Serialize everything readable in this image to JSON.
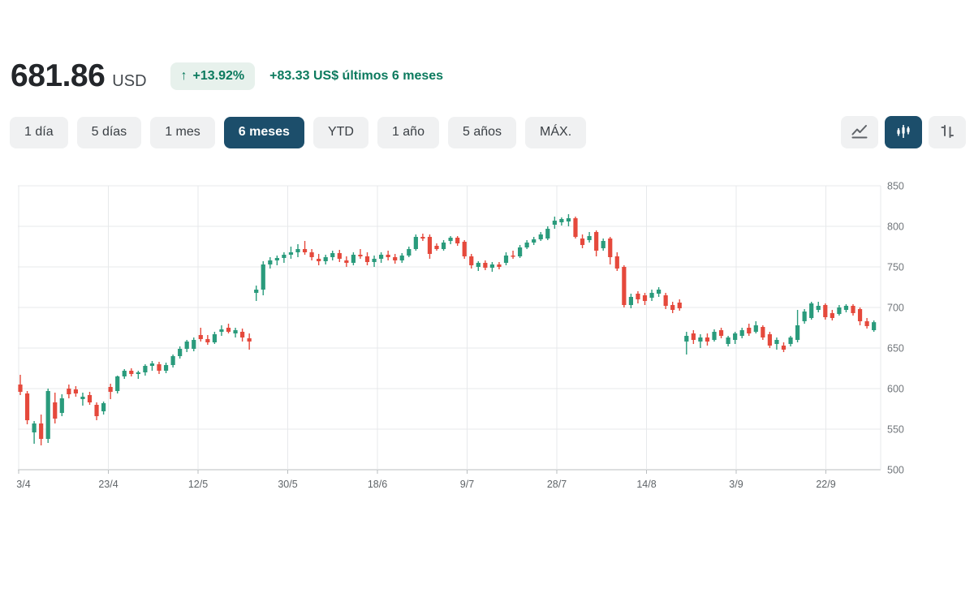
{
  "header": {
    "price": "681.86",
    "currency": "USD",
    "change_arrow": "↑",
    "change_percent": "+13.92%",
    "change_text": "+83.33 US$ últimos 6 meses",
    "accent_color": "#0c7a5e",
    "badge_bg": "#e7f1ec"
  },
  "range_tabs": [
    {
      "label": "1 día",
      "active": false
    },
    {
      "label": "5 días",
      "active": false
    },
    {
      "label": "1 mes",
      "active": false
    },
    {
      "label": "6 meses",
      "active": true
    },
    {
      "label": "YTD",
      "active": false
    },
    {
      "label": "1 año",
      "active": false
    },
    {
      "label": "5 años",
      "active": false
    },
    {
      "label": "MÁX.",
      "active": false
    }
  ],
  "chart_type_buttons": [
    {
      "icon": "line-chart-icon",
      "active": false
    },
    {
      "icon": "candlestick-chart-icon",
      "active": true
    },
    {
      "icon": "ohlc-bars-icon",
      "active": false
    }
  ],
  "selected_tab_color": "#1c4e6b",
  "chart_data": {
    "type": "candlestick",
    "title": "6 month daily candlestick price chart",
    "currency": "USD",
    "period": "6 meses",
    "grid": true,
    "y_axis_side": "right",
    "ylim": [
      500,
      850
    ],
    "y_ticks": [
      850,
      800,
      750,
      700,
      650,
      600,
      550,
      500
    ],
    "x_ticks": [
      "3/4",
      "23/4",
      "12/5",
      "30/5",
      "18/6",
      "9/7",
      "28/7",
      "14/8",
      "3/9",
      "22/9"
    ],
    "up_color": "#2a9b7c",
    "down_color": "#e5493c",
    "last_close": 681.86,
    "candles_format": [
      "open",
      "high",
      "low",
      "close"
    ],
    "candles": [
      [
        605,
        617,
        592,
        596
      ],
      [
        594,
        597,
        556,
        561
      ],
      [
        546,
        560,
        532,
        557
      ],
      [
        557,
        568,
        530,
        538
      ],
      [
        538,
        600,
        533,
        597
      ],
      [
        583,
        595,
        557,
        563
      ],
      [
        570,
        593,
        566,
        588
      ],
      [
        600,
        605,
        588,
        593
      ],
      [
        599,
        603,
        590,
        594
      ],
      [
        587,
        595,
        579,
        590
      ],
      [
        592,
        596,
        580,
        583
      ],
      [
        580,
        583,
        561,
        566
      ],
      [
        572,
        584,
        568,
        582
      ],
      [
        602,
        606,
        587,
        596
      ],
      [
        597,
        616,
        594,
        615
      ],
      [
        615,
        624,
        612,
        622
      ],
      [
        622,
        625,
        615,
        618
      ],
      [
        618,
        622,
        612,
        620
      ],
      [
        620,
        630,
        616,
        628
      ],
      [
        628,
        634,
        622,
        631
      ],
      [
        630,
        633,
        618,
        622
      ],
      [
        622,
        632,
        619,
        629
      ],
      [
        629,
        642,
        626,
        640
      ],
      [
        640,
        652,
        637,
        649
      ],
      [
        649,
        660,
        645,
        658
      ],
      [
        649,
        663,
        646,
        660
      ],
      [
        666,
        675,
        658,
        661
      ],
      [
        661,
        666,
        654,
        657
      ],
      [
        657,
        670,
        655,
        667
      ],
      [
        670,
        678,
        665,
        673
      ],
      [
        675,
        680,
        668,
        670
      ],
      [
        668,
        675,
        663,
        672
      ],
      [
        670,
        674,
        658,
        663
      ],
      [
        662,
        668,
        648,
        658
      ],
      [
        718,
        727,
        708,
        722
      ],
      [
        722,
        757,
        715,
        753
      ],
      [
        753,
        762,
        748,
        758
      ],
      [
        758,
        764,
        752,
        761
      ],
      [
        761,
        768,
        755,
        765
      ],
      [
        765,
        775,
        760,
        768
      ],
      [
        768,
        778,
        762,
        772
      ],
      [
        772,
        782,
        765,
        768
      ],
      [
        768,
        772,
        758,
        762
      ],
      [
        760,
        766,
        752,
        757
      ],
      [
        757,
        765,
        753,
        762
      ],
      [
        762,
        770,
        758,
        767
      ],
      [
        767,
        771,
        756,
        760
      ],
      [
        758,
        763,
        750,
        755
      ],
      [
        755,
        768,
        752,
        765
      ],
      [
        765,
        772,
        760,
        763
      ],
      [
        763,
        768,
        752,
        756
      ],
      [
        756,
        764,
        750,
        760
      ],
      [
        760,
        768,
        755,
        765
      ],
      [
        765,
        770,
        758,
        762
      ],
      [
        762,
        766,
        754,
        758
      ],
      [
        758,
        767,
        755,
        764
      ],
      [
        764,
        775,
        762,
        772
      ],
      [
        772,
        790,
        770,
        787
      ],
      [
        787,
        791,
        782,
        785
      ],
      [
        787,
        790,
        760,
        766
      ],
      [
        776,
        779,
        770,
        772
      ],
      [
        772,
        783,
        770,
        780
      ],
      [
        782,
        788,
        778,
        786
      ],
      [
        786,
        788,
        776,
        779
      ],
      [
        781,
        783,
        760,
        763
      ],
      [
        763,
        766,
        748,
        752
      ],
      [
        750,
        757,
        745,
        755
      ],
      [
        755,
        758,
        746,
        749
      ],
      [
        749,
        756,
        744,
        753
      ],
      [
        753,
        756,
        747,
        750
      ],
      [
        755,
        768,
        752,
        764
      ],
      [
        764,
        770,
        760,
        763
      ],
      [
        763,
        777,
        761,
        774
      ],
      [
        774,
        783,
        772,
        780
      ],
      [
        780,
        787,
        777,
        784
      ],
      [
        784,
        793,
        782,
        790
      ],
      [
        785,
        800,
        783,
        797
      ],
      [
        802,
        812,
        797,
        807
      ],
      [
        805,
        811,
        801,
        809
      ],
      [
        806,
        815,
        800,
        810
      ],
      [
        810,
        812,
        785,
        787
      ],
      [
        785,
        790,
        773,
        777
      ],
      [
        783,
        793,
        780,
        788
      ],
      [
        793,
        795,
        763,
        770
      ],
      [
        773,
        785,
        770,
        782
      ],
      [
        785,
        787,
        753,
        762
      ],
      [
        763,
        768,
        745,
        748
      ],
      [
        750,
        752,
        700,
        703
      ],
      [
        703,
        717,
        699,
        713
      ],
      [
        717,
        720,
        705,
        710
      ],
      [
        715,
        718,
        703,
        708
      ],
      [
        712,
        722,
        708,
        718
      ],
      [
        717,
        725,
        713,
        722
      ],
      [
        715,
        718,
        698,
        702
      ],
      [
        703,
        707,
        693,
        697
      ],
      [
        706,
        710,
        696,
        699
      ],
      [
        658,
        670,
        642,
        665
      ],
      [
        668,
        672,
        655,
        660
      ],
      [
        658,
        667,
        650,
        663
      ],
      [
        663,
        668,
        653,
        658
      ],
      [
        660,
        673,
        658,
        670
      ],
      [
        672,
        675,
        662,
        665
      ],
      [
        655,
        665,
        652,
        663
      ],
      [
        660,
        670,
        655,
        668
      ],
      [
        665,
        675,
        662,
        672
      ],
      [
        675,
        680,
        665,
        668
      ],
      [
        670,
        683,
        668,
        678
      ],
      [
        676,
        678,
        660,
        663
      ],
      [
        667,
        670,
        650,
        653
      ],
      [
        655,
        663,
        648,
        660
      ],
      [
        653,
        657,
        645,
        648
      ],
      [
        655,
        665,
        652,
        663
      ],
      [
        660,
        697,
        657,
        678
      ],
      [
        683,
        698,
        680,
        695
      ],
      [
        687,
        707,
        685,
        705
      ],
      [
        697,
        707,
        694,
        702
      ],
      [
        703,
        705,
        685,
        688
      ],
      [
        693,
        697,
        684,
        687
      ],
      [
        692,
        703,
        690,
        700
      ],
      [
        697,
        704,
        694,
        702
      ],
      [
        702,
        704,
        690,
        693
      ],
      [
        698,
        700,
        678,
        683
      ],
      [
        683,
        687,
        674,
        677
      ],
      [
        672,
        684,
        670,
        681.86
      ]
    ]
  }
}
